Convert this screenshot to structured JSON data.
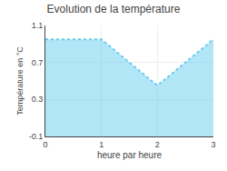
{
  "chart_data": {
    "type": "area",
    "title": "Evolution de la température",
    "xlabel": "heure par heure",
    "ylabel": "Température en °C",
    "x": [
      0,
      1,
      2,
      3
    ],
    "values": [
      0.95,
      0.95,
      0.45,
      0.95
    ],
    "color": "#66ccee",
    "line_style": "dotted",
    "xlim": [
      0,
      3
    ],
    "xticks": [
      0,
      1,
      2,
      3
    ],
    "ylim": [
      -0.1,
      1.1
    ],
    "yticks": [
      -0.1,
      0.3,
      0.7,
      1.1
    ],
    "grid": true
  }
}
